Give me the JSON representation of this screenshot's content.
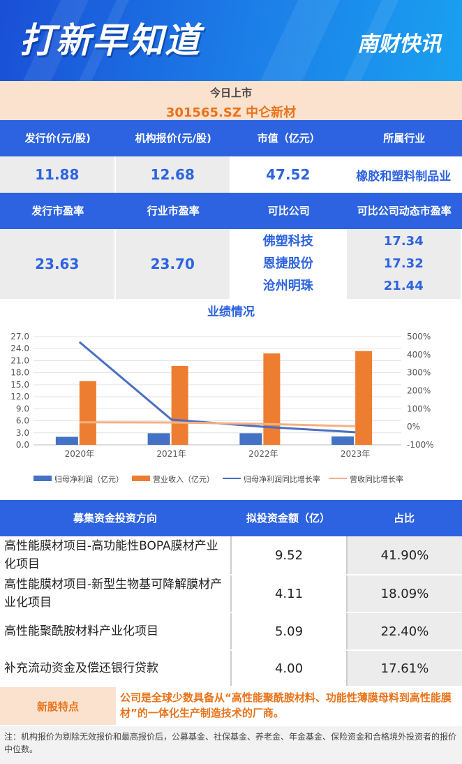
{
  "header": {
    "title": "打新早知道",
    "brand": "南财快讯"
  },
  "today": {
    "label": "今日上市",
    "stock": "301565.SZ 中仑新材"
  },
  "row1_headers": [
    "发行价(元/股)",
    "机构报价(元/股)",
    "市值（亿元）",
    "所属行业"
  ],
  "row1_values": [
    "11.88",
    "12.68",
    "47.52",
    "橡胶和塑料制品业"
  ],
  "row2_headers": [
    "发行市盈率",
    "行业市盈率",
    "可比公司",
    "可比公司动态市盈率"
  ],
  "row2_values": {
    "issue_pe": "23.63",
    "industry_pe": "23.70",
    "companies": [
      "佛塑科技",
      "恩捷股份",
      "沧州明珠"
    ],
    "company_pe": [
      "17.34",
      "17.32",
      "21.44"
    ]
  },
  "chart_title": "业绩情况",
  "chart_data": {
    "type": "bar",
    "categories": [
      "2020年",
      "2021年",
      "2022年",
      "2023年"
    ],
    "series": [
      {
        "name": "归母净利润（亿元）",
        "type": "bar",
        "axis": "left",
        "color": "#4472c4",
        "values": [
          2.0,
          2.9,
          2.9,
          2.1
        ]
      },
      {
        "name": "营业收入（亿元）",
        "type": "bar",
        "axis": "left",
        "color": "#ed7d31",
        "values": [
          15.9,
          19.7,
          22.8,
          23.4
        ]
      },
      {
        "name": "归母净利润同比增长率",
        "type": "line",
        "axis": "right",
        "color": "#4a6fc0",
        "values": [
          470,
          40,
          0,
          -30
        ]
      },
      {
        "name": "营收同比增长率",
        "type": "line",
        "axis": "right",
        "color": "#f4b183",
        "values": [
          25,
          24,
          16,
          3
        ]
      }
    ],
    "yticks_left": [
      "27.0",
      "24.0",
      "21.0",
      "18.0",
      "15.0",
      "12.0",
      "9.0",
      "6.0",
      "3.0",
      "0.0"
    ],
    "yticks_right": [
      "500%",
      "400%",
      "300%",
      "200%",
      "100%",
      "0%",
      "-100%"
    ],
    "ylim_left": [
      0,
      27
    ],
    "ylim_right": [
      -100,
      500
    ]
  },
  "fund": {
    "headers": [
      "募集资金投资方向",
      "拟投资金额（亿）",
      "占比"
    ],
    "rows": [
      {
        "name": "高性能膜材项目-高功能性BOPA膜材产业化项目",
        "amount": "9.52",
        "pct": "41.90%"
      },
      {
        "name": "高性能膜材项目-新型生物基可降解膜材产业化项目",
        "amount": "4.11",
        "pct": "18.09%"
      },
      {
        "name": "高性能聚酰胺材料产业化项目",
        "amount": "5.09",
        "pct": "22.40%"
      },
      {
        "name": "补充流动资金及偿还银行贷款",
        "amount": "4.00",
        "pct": "17.61%"
      }
    ]
  },
  "feature": {
    "label": "新股特点",
    "text": "公司是全球少数具备从“高性能聚酰胺材料、功能性薄膜母料到高性能膜材”的一体化生产制造技术的厂商。"
  },
  "note": "注：机构报价为剔除无效报价和最高报价后，公募基金、社保基金、养老金、年金基金、保险资金和合格境外投资者的报价中位数。"
}
